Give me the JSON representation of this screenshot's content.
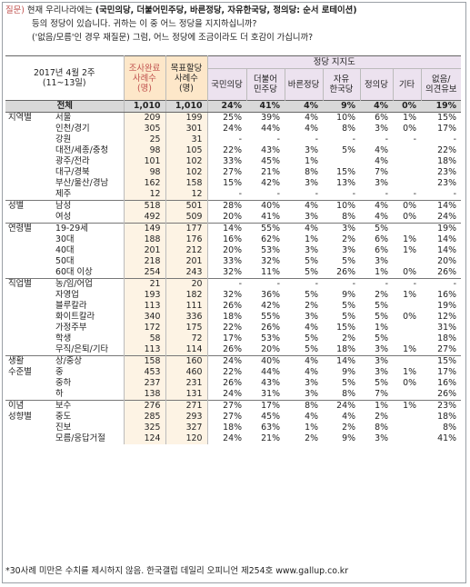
{
  "question": {
    "label": "질문)",
    "line1_prefix": "현재 우리나라에는",
    "line1_parties": "(국민의당, 더불어민주당, 바른정당, 자유한국당, 정의당: 순서 로테이션)",
    "line2": "등의 정당이 있습니다. 귀하는 이 중 어느 정당을 지지하십니까?",
    "line3": "('없음/모름'인 경우 재질문) 그럼, 어느 정당에 조금이라도 더 호감이 가십니까?"
  },
  "header": {
    "period": "2017년 4월 2주",
    "dates": "(11~13일)",
    "sample1": "조사완료",
    "sample2": "사례수",
    "sample3": "(명)",
    "target1": "목표할당",
    "target2": "사례수",
    "target3": "(명)",
    "party_support": "정당 지지도"
  },
  "parties": [
    {
      "l1": "국민의당",
      "l2": ""
    },
    {
      "l1": "더불어",
      "l2": "민주당"
    },
    {
      "l1": "바른정당",
      "l2": ""
    },
    {
      "l1": "자유",
      "l2": "한국당"
    },
    {
      "l1": "정의당",
      "l2": ""
    },
    {
      "l1": "기타",
      "l2": ""
    },
    {
      "l1": "없음/",
      "l2": "의견유보"
    }
  ],
  "rows": [
    {
      "g": "",
      "l": "전체",
      "a": "1,010",
      "b": "1,010",
      "v": [
        "24%",
        "41%",
        "4%",
        "9%",
        "4%",
        "0%",
        "19%"
      ],
      "tot": true
    },
    {
      "g": "지역별",
      "l": "서울",
      "a": "209",
      "b": "199",
      "v": [
        "25%",
        "39%",
        "4%",
        "10%",
        "6%",
        "1%",
        "15%"
      ],
      "sec": true
    },
    {
      "g": "",
      "l": "인천/경기",
      "a": "305",
      "b": "301",
      "v": [
        "24%",
        "44%",
        "4%",
        "8%",
        "3%",
        "0%",
        "17%"
      ]
    },
    {
      "g": "",
      "l": "강원",
      "a": "25",
      "b": "31",
      "v": [
        "-",
        "-",
        "-",
        "-",
        "-",
        "-",
        "-"
      ]
    },
    {
      "g": "",
      "l": "대전/세종/충청",
      "a": "98",
      "b": "105",
      "v": [
        "22%",
        "43%",
        "3%",
        "5%",
        "4%",
        "",
        "22%"
      ]
    },
    {
      "g": "",
      "l": "광주/전라",
      "a": "101",
      "b": "102",
      "v": [
        "33%",
        "45%",
        "1%",
        "",
        "4%",
        "",
        "18%"
      ]
    },
    {
      "g": "",
      "l": "대구/경북",
      "a": "98",
      "b": "102",
      "v": [
        "27%",
        "21%",
        "8%",
        "15%",
        "7%",
        "",
        "23%"
      ]
    },
    {
      "g": "",
      "l": "부산/울산/경남",
      "a": "162",
      "b": "158",
      "v": [
        "15%",
        "42%",
        "3%",
        "13%",
        "3%",
        "",
        "23%"
      ]
    },
    {
      "g": "",
      "l": "제주",
      "a": "12",
      "b": "12",
      "v": [
        "-",
        "-",
        "-",
        "-",
        "-",
        "-",
        "-"
      ]
    },
    {
      "g": "성별",
      "l": "남성",
      "a": "518",
      "b": "501",
      "v": [
        "28%",
        "40%",
        "4%",
        "10%",
        "4%",
        "0%",
        "14%"
      ],
      "sec": true
    },
    {
      "g": "",
      "l": "여성",
      "a": "492",
      "b": "509",
      "v": [
        "20%",
        "41%",
        "3%",
        "8%",
        "4%",
        "0%",
        "24%"
      ]
    },
    {
      "g": "연령별",
      "l": "19-29세",
      "a": "149",
      "b": "177",
      "v": [
        "14%",
        "55%",
        "4%",
        "3%",
        "5%",
        "",
        "19%"
      ],
      "sec": true
    },
    {
      "g": "",
      "l": "30대",
      "a": "188",
      "b": "176",
      "v": [
        "16%",
        "62%",
        "1%",
        "2%",
        "6%",
        "1%",
        "14%"
      ]
    },
    {
      "g": "",
      "l": "40대",
      "a": "201",
      "b": "212",
      "v": [
        "20%",
        "53%",
        "3%",
        "3%",
        "6%",
        "1%",
        "14%"
      ]
    },
    {
      "g": "",
      "l": "50대",
      "a": "218",
      "b": "201",
      "v": [
        "33%",
        "32%",
        "5%",
        "5%",
        "3%",
        "",
        "20%"
      ]
    },
    {
      "g": "",
      "l": "60대 이상",
      "a": "254",
      "b": "243",
      "v": [
        "32%",
        "11%",
        "5%",
        "26%",
        "1%",
        "0%",
        "26%"
      ]
    },
    {
      "g": "직업별",
      "l": "농/임/어업",
      "a": "21",
      "b": "20",
      "v": [
        "-",
        "-",
        "-",
        "-",
        "-",
        "-",
        "-"
      ],
      "sec": true
    },
    {
      "g": "",
      "l": "자영업",
      "a": "193",
      "b": "182",
      "v": [
        "32%",
        "36%",
        "5%",
        "9%",
        "2%",
        "1%",
        "16%"
      ]
    },
    {
      "g": "",
      "l": "블루칼라",
      "a": "113",
      "b": "111",
      "v": [
        "26%",
        "42%",
        "2%",
        "5%",
        "5%",
        "",
        "19%"
      ]
    },
    {
      "g": "",
      "l": "화이트칼라",
      "a": "340",
      "b": "336",
      "v": [
        "18%",
        "55%",
        "3%",
        "5%",
        "5%",
        "0%",
        "12%"
      ]
    },
    {
      "g": "",
      "l": "가정주부",
      "a": "172",
      "b": "175",
      "v": [
        "22%",
        "26%",
        "4%",
        "15%",
        "1%",
        "",
        "31%"
      ]
    },
    {
      "g": "",
      "l": "학생",
      "a": "58",
      "b": "72",
      "v": [
        "17%",
        "53%",
        "5%",
        "2%",
        "5%",
        "",
        "18%"
      ]
    },
    {
      "g": "",
      "l": "무직/은퇴/기타",
      "a": "113",
      "b": "114",
      "v": [
        "26%",
        "20%",
        "5%",
        "18%",
        "3%",
        "1%",
        "27%"
      ]
    },
    {
      "g": "생활",
      "l": "상/중상",
      "a": "158",
      "b": "160",
      "v": [
        "24%",
        "40%",
        "4%",
        "14%",
        "3%",
        "",
        "15%"
      ],
      "sec": true
    },
    {
      "g": "수준별",
      "l": "중",
      "a": "453",
      "b": "460",
      "v": [
        "22%",
        "44%",
        "4%",
        "9%",
        "3%",
        "1%",
        "17%"
      ]
    },
    {
      "g": "",
      "l": "중하",
      "a": "237",
      "b": "231",
      "v": [
        "26%",
        "43%",
        "3%",
        "5%",
        "5%",
        "0%",
        "16%"
      ]
    },
    {
      "g": "",
      "l": "하",
      "a": "138",
      "b": "131",
      "v": [
        "24%",
        "31%",
        "3%",
        "8%",
        "7%",
        "",
        "26%"
      ]
    },
    {
      "g": "이념",
      "l": "보수",
      "a": "276",
      "b": "271",
      "v": [
        "27%",
        "17%",
        "8%",
        "24%",
        "1%",
        "1%",
        "23%"
      ],
      "sec": true
    },
    {
      "g": "성향별",
      "l": "중도",
      "a": "285",
      "b": "293",
      "v": [
        "27%",
        "45%",
        "4%",
        "4%",
        "2%",
        "",
        "18%"
      ]
    },
    {
      "g": "",
      "l": "진보",
      "a": "325",
      "b": "327",
      "v": [
        "18%",
        "63%",
        "1%",
        "2%",
        "8%",
        "",
        "8%"
      ]
    },
    {
      "g": "",
      "l": "모름/응답거절",
      "a": "124",
      "b": "120",
      "v": [
        "24%",
        "21%",
        "2%",
        "9%",
        "3%",
        "",
        "41%"
      ]
    }
  ],
  "footnote": "*30사례 미만은 수치를 제시하지 않음. 한국갤럽 데일리 오피니언 제254호 www.gallup.co.kr"
}
